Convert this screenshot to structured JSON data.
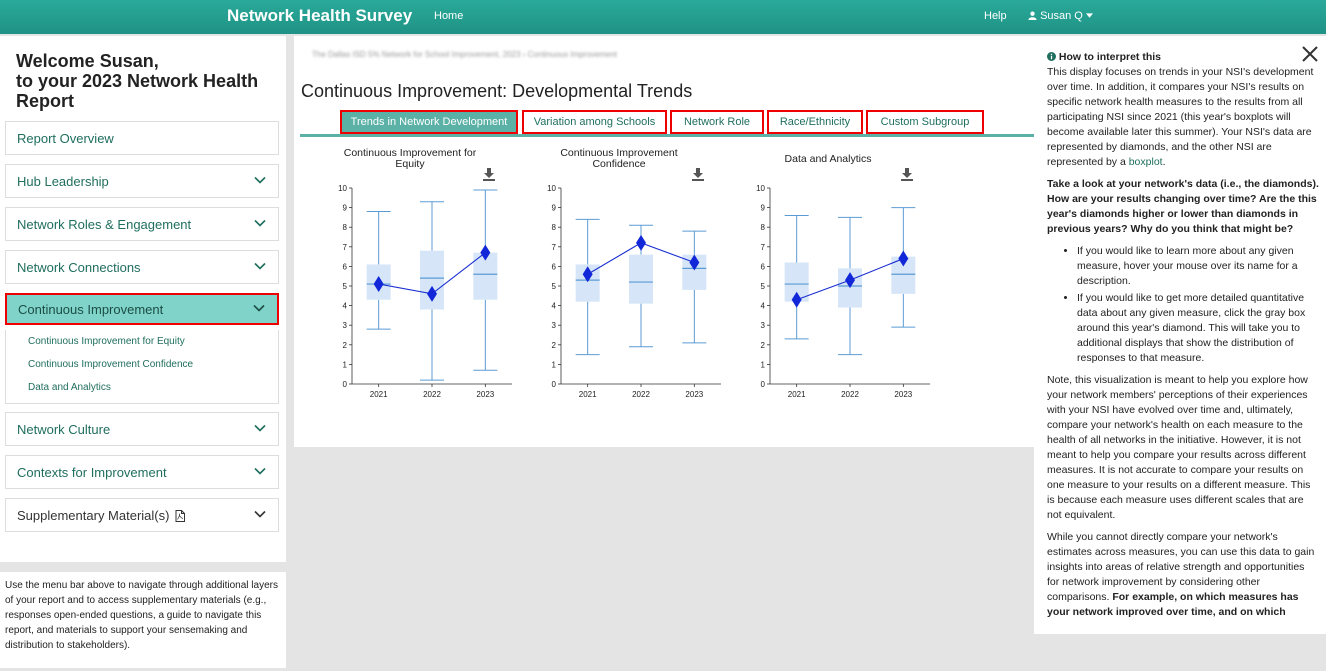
{
  "navbar": {
    "brand": "Network Health Survey",
    "home": "Home",
    "help": "Help",
    "user": "Susan Q",
    "user_icon": "user-icon",
    "caret_icon": "caret-down-icon"
  },
  "sidebar": {
    "welcome_line1": "Welcome Susan,",
    "welcome_line2": "to your 2023 Network Health",
    "welcome_line3": "Report",
    "items": [
      {
        "label": "Report Overview"
      },
      {
        "label": "Hub Leadership"
      },
      {
        "label": "Network Roles & Engagement"
      },
      {
        "label": "Network Connections"
      },
      {
        "label": "Continuous Improvement"
      },
      {
        "label": "Network Culture"
      },
      {
        "label": "Contexts for Improvement"
      },
      {
        "label": "Supplementary Material(s)"
      }
    ],
    "sub_items": [
      {
        "label": "Continuous Improvement for Equity"
      },
      {
        "label": "Continuous Improvement Confidence"
      },
      {
        "label": "Data and Analytics"
      }
    ],
    "note": "Use the menu bar above to navigate through additional layers of your report and to access supplementary materials (e.g., responses open-ended questions, a guide to navigate this report, and materials to support your sensemaking and distribution to stakeholders)."
  },
  "main": {
    "breadcrumb": "The Dallas ISD 5% Network for School Improvement, 2023  ›  Continuous Improvement",
    "title": "Continuous Improvement: Developmental Trends",
    "tabs": [
      {
        "label": "Trends in Network Development"
      },
      {
        "label": "Variation among Schools"
      },
      {
        "label": "Network Role"
      },
      {
        "label": "Race/Ethnicity"
      },
      {
        "label": "Custom Subgroup"
      }
    ]
  },
  "chart_data": [
    {
      "type": "boxplot",
      "title": "Continuous Improvement for Equity",
      "categories": [
        "2021",
        "2022",
        "2023"
      ],
      "ylim": [
        0,
        10
      ],
      "yticks": [
        "0",
        "1",
        "2",
        "3",
        "4",
        "5",
        "6",
        "7",
        "8",
        "9",
        "10"
      ],
      "boxes": [
        {
          "min": 2.8,
          "q1": 4.3,
          "median": 5.1,
          "q3": 6.1,
          "max": 8.8
        },
        {
          "min": 0.2,
          "q1": 3.8,
          "median": 5.4,
          "q3": 6.8,
          "max": 9.3
        },
        {
          "min": 0.7,
          "q1": 4.3,
          "median": 5.6,
          "q3": 6.7,
          "max": 9.9
        }
      ],
      "network_values": [
        5.1,
        4.6,
        6.7
      ]
    },
    {
      "type": "boxplot",
      "title": "Continuous Improvement Confidence",
      "categories": [
        "2021",
        "2022",
        "2023"
      ],
      "ylim": [
        0,
        10
      ],
      "yticks": [
        "0",
        "1",
        "2",
        "3",
        "4",
        "5",
        "6",
        "7",
        "8",
        "9",
        "10"
      ],
      "boxes": [
        {
          "min": 1.5,
          "q1": 4.2,
          "median": 5.3,
          "q3": 6.1,
          "max": 8.4
        },
        {
          "min": 1.9,
          "q1": 4.1,
          "median": 5.2,
          "q3": 6.6,
          "max": 8.1
        },
        {
          "min": 2.1,
          "q1": 4.8,
          "median": 5.9,
          "q3": 6.6,
          "max": 7.8
        }
      ],
      "network_values": [
        5.6,
        7.2,
        6.2
      ]
    },
    {
      "type": "boxplot",
      "title": "Data and Analytics",
      "categories": [
        "2021",
        "2022",
        "2023"
      ],
      "ylim": [
        0,
        10
      ],
      "yticks": [
        "0",
        "1",
        "2",
        "3",
        "4",
        "5",
        "6",
        "7",
        "8",
        "9",
        "10"
      ],
      "boxes": [
        {
          "min": 2.3,
          "q1": 4.2,
          "median": 5.1,
          "q3": 6.2,
          "max": 8.6
        },
        {
          "min": 1.5,
          "q1": 3.9,
          "median": 5.0,
          "q3": 5.9,
          "max": 8.5
        },
        {
          "min": 2.9,
          "q1": 4.6,
          "median": 5.6,
          "q3": 6.5,
          "max": 9.0
        }
      ],
      "network_values": [
        4.3,
        5.3,
        6.4
      ]
    }
  ],
  "info": {
    "title": "How to interpret this",
    "p1_before_link": "This display focuses on trends in your NSI's development over time. In addition, it compares your NSI's results on specific network health measures to the results from all participating NSI since 2021 (this year's boxplots will become available later this summer). Your NSI's data are represented by diamonds, and the other NSI are represented by a ",
    "p1_link": "boxplot",
    "p1_after_link": ".",
    "p2": "Take a look at your network's data (i.e., the diamonds). How are your results changing over time? Are the this year's diamonds higher or lower than diamonds in previous years? Why do you think that might be?",
    "bullets": [
      "If you would like to learn more about any given measure, hover your mouse over its name for a description.",
      "If you would like to get more detailed quantitative data about any given measure, click the gray box around this year's diamond. This will take you to additional displays that show the distribution of responses to that measure."
    ],
    "p3": "Note, this visualization is meant to help you explore how your network members' perceptions of their experiences with your NSI have evolved over time and, ultimately, compare your network's health on each measure to the health of all networks in the initiative. However, it is not meant to help you compare your results across different measures. It is not accurate to compare your results on one measure to your results on a different measure. This is because each measure uses different scales that are not equivalent.",
    "p4_normal": "While you cannot directly compare your network's estimates across measures, you can use this data to gain insights into areas of relative strength and opportunities for network improvement by considering other comparisons. ",
    "p4_bold": "For example, on which measures has your network improved over time, and on which"
  }
}
